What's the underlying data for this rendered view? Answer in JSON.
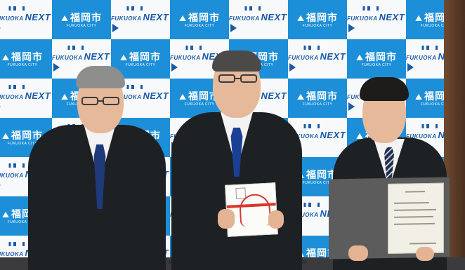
{
  "signage": {
    "city_logo": {
      "mark": "⛰",
      "name": "福岡市",
      "sub": "FUKUOKA CITY"
    },
    "next_logo": {
      "word": "NEXT",
      "prefix": "FUKUOKA"
    }
  },
  "colors": {
    "backdrop_blue": "#1d8fd8",
    "backdrop_white": "#f7f9fb",
    "suit": "#1e2124",
    "tie_left": "#1f3a7a",
    "tie_middle": "#1b3f94",
    "tie_right": "#22304d",
    "ribbon": "#d8362c"
  }
}
